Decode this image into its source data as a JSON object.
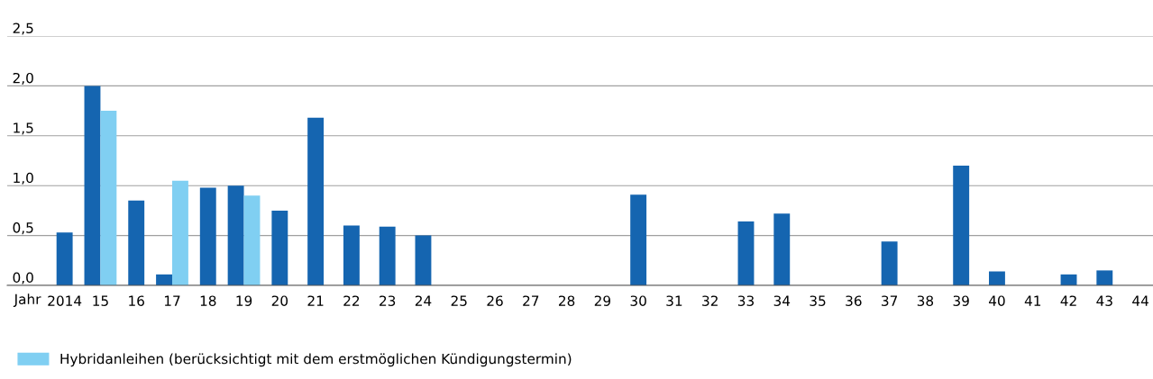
{
  "chart_data": {
    "type": "bar",
    "xlabel": "Jahr",
    "categories": [
      "2014",
      "15",
      "16",
      "17",
      "18",
      "19",
      "20",
      "21",
      "22",
      "23",
      "24",
      "25",
      "26",
      "27",
      "28",
      "29",
      "30",
      "31",
      "32",
      "33",
      "34",
      "35",
      "36",
      "37",
      "38",
      "39",
      "40",
      "41",
      "42",
      "43",
      "44"
    ],
    "series": [
      {
        "color": "#1565b0",
        "values": [
          0.53,
          2.0,
          0.85,
          0.11,
          0.98,
          1.0,
          0.75,
          1.68,
          0.6,
          0.59,
          0.5,
          null,
          null,
          null,
          null,
          null,
          0.91,
          null,
          null,
          0.64,
          0.72,
          null,
          null,
          0.44,
          null,
          1.2,
          0.14,
          null,
          0.11,
          0.15,
          null
        ]
      },
      {
        "name": "Hybridanleihen (berücksichtigt mit dem erstmöglichen Kündigungstermin)",
        "color": "#80cff2",
        "values": [
          null,
          1.75,
          null,
          1.05,
          null,
          0.9,
          null,
          null,
          null,
          null,
          null,
          null,
          null,
          null,
          null,
          null,
          null,
          null,
          null,
          null,
          null,
          null,
          null,
          null,
          null,
          null,
          null,
          null,
          null,
          null,
          null
        ]
      }
    ],
    "ylim": [
      0,
      2.5
    ],
    "yticks": [
      {
        "value": 0,
        "label": "0,0"
      },
      {
        "value": 0.5,
        "label": "0,5"
      },
      {
        "value": 1,
        "label": "1,0"
      },
      {
        "value": 1.5,
        "label": "1,5"
      },
      {
        "value": 2,
        "label": "2,0"
      },
      {
        "value": 2.5,
        "label": "2,5"
      }
    ],
    "grid": "y",
    "legend": "bottom left"
  }
}
